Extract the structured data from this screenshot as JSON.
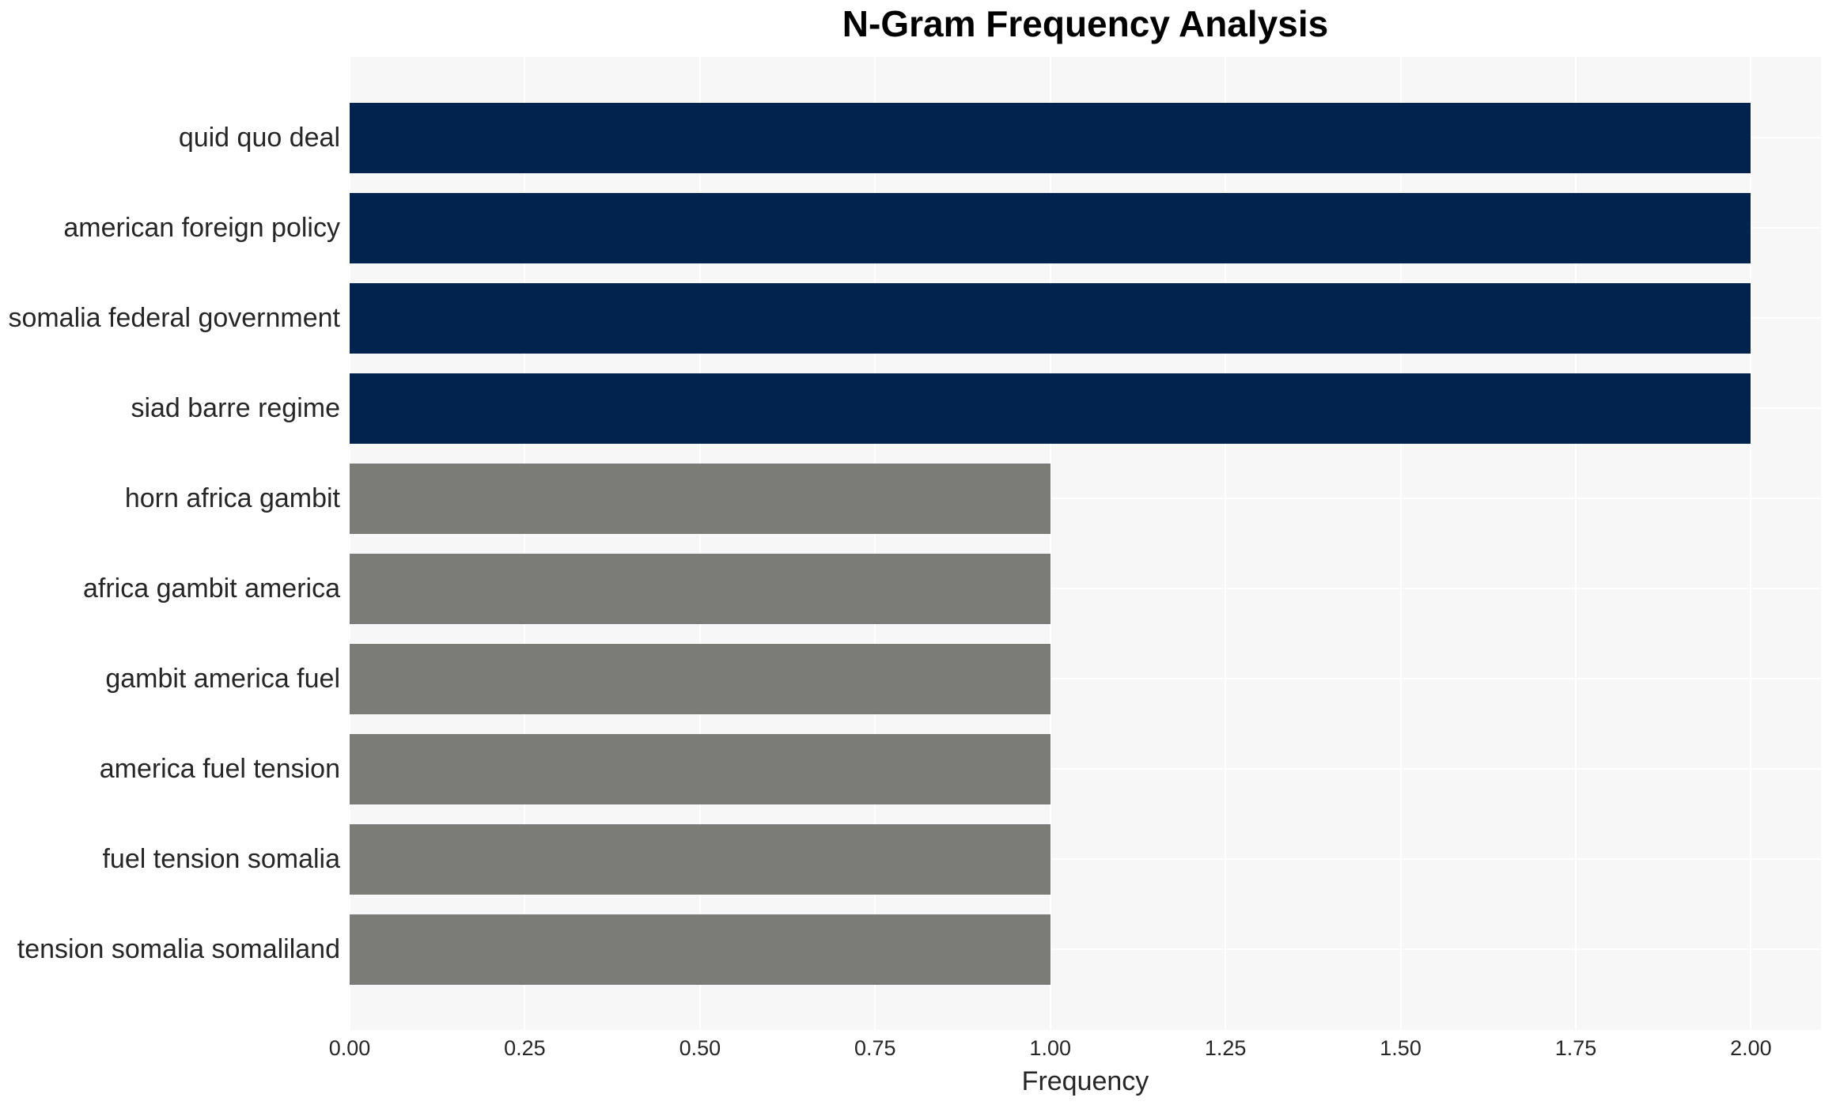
{
  "colors": {
    "bar_navy": "#02234d",
    "bar_gray": "#7b7b77",
    "panel_background": "#f7f7f8",
    "grid_line": "#ffffff",
    "tick_text": "#262626",
    "title_text": "#000000",
    "page_background": "#ffffff"
  },
  "chart_data": {
    "type": "bar",
    "orientation": "horizontal",
    "title": "N-Gram Frequency Analysis",
    "xlabel": "Frequency",
    "ylabel": "",
    "categories": [
      "quid quo deal",
      "american foreign policy",
      "somalia federal government",
      "siad barre regime",
      "horn africa gambit",
      "africa gambit america",
      "gambit america fuel",
      "america fuel tension",
      "fuel tension somalia",
      "tension somalia somaliland"
    ],
    "values": [
      2,
      2,
      2,
      2,
      1,
      1,
      1,
      1,
      1,
      1
    ],
    "bar_colors": [
      "#02234d",
      "#02234d",
      "#02234d",
      "#02234d",
      "#7b7b77",
      "#7b7b77",
      "#7b7b77",
      "#7b7b77",
      "#7b7b77",
      "#7b7b77"
    ],
    "xlim": [
      0,
      2.1
    ],
    "xticks": [
      {
        "value": 0.0,
        "label": "0.00"
      },
      {
        "value": 0.25,
        "label": "0.25"
      },
      {
        "value": 0.5,
        "label": "0.50"
      },
      {
        "value": 0.75,
        "label": "0.75"
      },
      {
        "value": 1.0,
        "label": "1.00"
      },
      {
        "value": 1.25,
        "label": "1.25"
      },
      {
        "value": 1.5,
        "label": "1.50"
      },
      {
        "value": 1.75,
        "label": "1.75"
      },
      {
        "value": 2.0,
        "label": "2.00"
      }
    ],
    "grid": {
      "vertical_at_xticks": true,
      "horizontal_at_bar_centers": true
    },
    "legend": null
  }
}
